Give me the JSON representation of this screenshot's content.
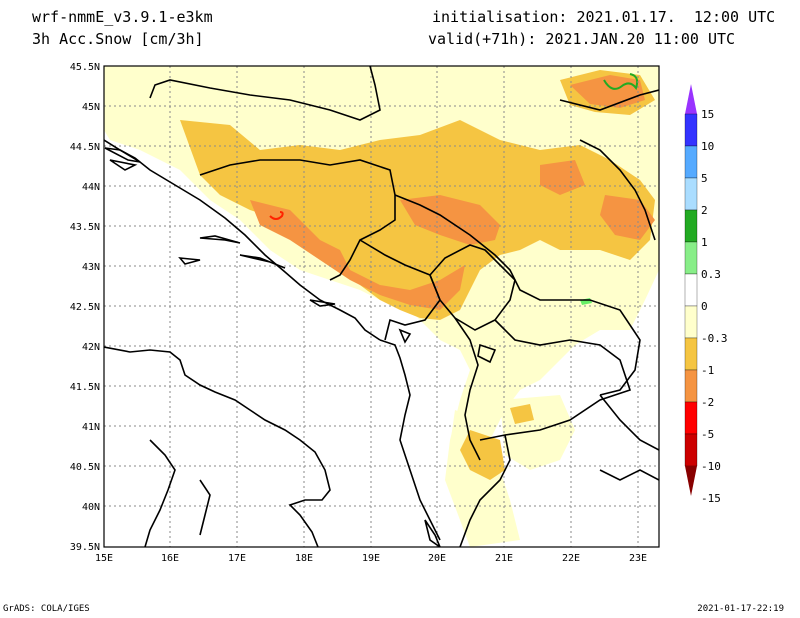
{
  "header": {
    "model": "wrf-nmmE_v3.9.1-e3km",
    "variable": "3h Acc.Snow [cm/3h]",
    "init": "initialisation: 2021.01.17.  12:00 UTC",
    "valid": "valid(+71h): 2021.JAN.20 11:00 UTC"
  },
  "footer": {
    "left": "GrADS: COLA/IGES",
    "right": "2021-01-17-22:19"
  },
  "axes": {
    "lat_ticks": [
      "45.5N",
      "45N",
      "44.5N",
      "44N",
      "43.5N",
      "43N",
      "42.5N",
      "42N",
      "41.5N",
      "41N",
      "40.5N",
      "40N",
      "39.5N"
    ],
    "lon_ticks": [
      "15E",
      "16E",
      "17E",
      "18E",
      "19E",
      "20E",
      "21E",
      "22E",
      "23E"
    ]
  },
  "colorbar": {
    "labels": [
      "15",
      "10",
      "5",
      "2",
      "1",
      "0.3",
      "0",
      "-0.3",
      "-1",
      "-2",
      "-5",
      "-10",
      "-15"
    ],
    "colors": [
      "#9933ff",
      "#3333ff",
      "#55aaff",
      "#aaddff",
      "#22aa22",
      "#88ee88",
      "#ffffff",
      "#ffffcc",
      "#f5c542",
      "#f59442",
      "#ff0000",
      "#cc0000",
      "#880000"
    ]
  },
  "legend_colors": {
    "light": "#ffffcc",
    "medium": "#f5c542",
    "heavy": "#f59442",
    "extreme": "#ff2200",
    "green": "#66ee66"
  }
}
